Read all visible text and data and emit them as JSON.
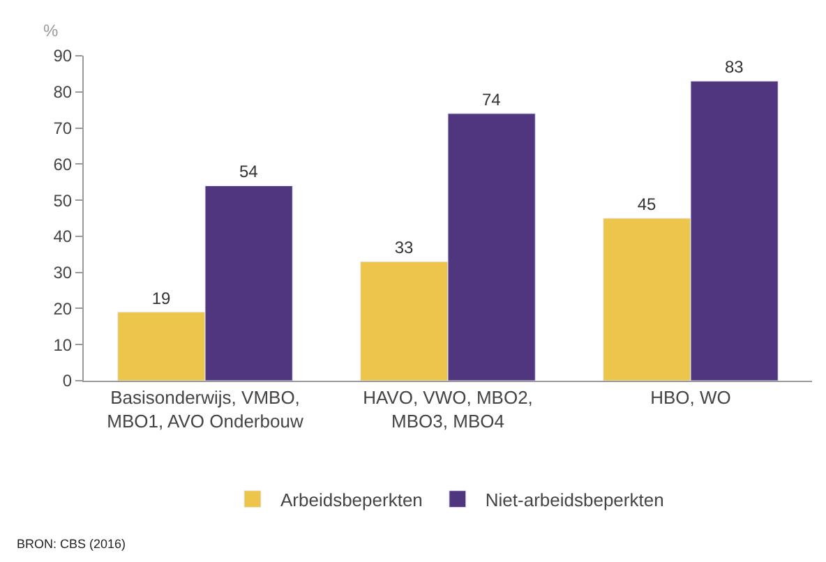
{
  "chart_data": {
    "type": "bar",
    "ylabel": "%",
    "categories": [
      "Basisonderwijs, VMBO,\nMBO1, AVO Onderbouw",
      "HAVO, VWO, MBO2,\nMBO3, MBO4",
      "HBO, WO"
    ],
    "series": [
      {
        "name": "Arbeidsbeperkten",
        "color": "#ecc54a",
        "values": [
          19,
          33,
          45
        ]
      },
      {
        "name": "Niet-arbeidsbeperkten",
        "color": "#50367e",
        "values": [
          54,
          74,
          83
        ]
      }
    ],
    "ylim": [
      0,
      90
    ],
    "yticks": [
      0,
      10,
      20,
      30,
      40,
      50,
      60,
      70,
      80,
      90
    ],
    "data_labels": true,
    "legend": "bottom",
    "annotations": [
      "BRON: CBS (2016)"
    ]
  }
}
